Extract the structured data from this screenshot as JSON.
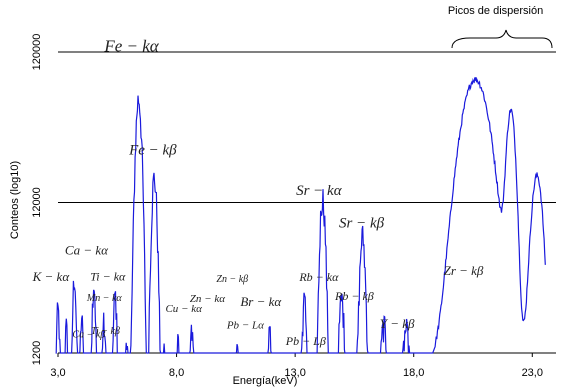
{
  "chart_data": {
    "type": "line",
    "xlabel": "Energía(keV)",
    "ylabel": "Conteos (log10)",
    "xlim": [
      3.0,
      24.0
    ],
    "ylim": [
      1200,
      200000
    ],
    "log_y": true,
    "x_ticks": [
      {
        "value": 3.0,
        "label": "3,0"
      },
      {
        "value": 8.0,
        "label": "8,0"
      },
      {
        "value": 13.0,
        "label": "13,0"
      },
      {
        "value": 18.0,
        "label": "18,0"
      },
      {
        "value": 23.0,
        "label": "23,0"
      }
    ],
    "y_ticks": [
      {
        "value": 1200,
        "label": "1200"
      },
      {
        "value": 12000,
        "label": "12000"
      },
      {
        "value": 120000,
        "label": "120000"
      }
    ],
    "reference_lines": [
      {
        "y": 12000
      },
      {
        "y": 120000
      }
    ],
    "series_color": "#1a1adc",
    "peaks": [
      {
        "x": 3.0,
        "h": 1900,
        "w": 0.06
      },
      {
        "x": 3.35,
        "h": 1300,
        "w": 0.05
      },
      {
        "x": 3.69,
        "h": 3300,
        "w": 0.06
      },
      {
        "x": 4.0,
        "h": 1400,
        "w": 0.05
      },
      {
        "x": 4.51,
        "h": 2900,
        "w": 0.06
      },
      {
        "x": 4.93,
        "h": 1300,
        "w": 0.06
      },
      {
        "x": 5.41,
        "h": 2400,
        "w": 0.06
      },
      {
        "x": 5.9,
        "h": 700,
        "w": 0.06
      },
      {
        "x": 6.4,
        "h": 58000,
        "w": 0.11
      },
      {
        "x": 7.06,
        "h": 17000,
        "w": 0.1
      },
      {
        "x": 7.48,
        "h": 700,
        "w": 0.06
      },
      {
        "x": 8.05,
        "h": 700,
        "w": 0.06
      },
      {
        "x": 8.64,
        "h": 1000,
        "w": 0.07
      },
      {
        "x": 9.57,
        "h": 400,
        "w": 0.06
      },
      {
        "x": 10.55,
        "h": 800,
        "w": 0.07
      },
      {
        "x": 11.92,
        "h": 1100,
        "w": 0.08
      },
      {
        "x": 12.61,
        "h": 400,
        "w": 0.07
      },
      {
        "x": 13.39,
        "h": 2200,
        "w": 0.08
      },
      {
        "x": 14.16,
        "h": 12500,
        "w": 0.1
      },
      {
        "x": 14.96,
        "h": 2200,
        "w": 0.09
      },
      {
        "x": 15.84,
        "h": 6500,
        "w": 0.1
      },
      {
        "x": 16.74,
        "h": 1300,
        "w": 0.1
      },
      {
        "x": 17.67,
        "h": 1100,
        "w": 0.1
      },
      {
        "x": 20.6,
        "h": 76000,
        "w": 0.5
      },
      {
        "x": 22.1,
        "h": 47000,
        "w": 0.16
      },
      {
        "x": 23.2,
        "h": 17000,
        "w": 0.2
      }
    ],
    "annotations": [
      {
        "text": "Fe − kα",
        "x": 6.1,
        "y": 121000,
        "size": 17,
        "style": "italic"
      },
      {
        "text": "Fe − kβ",
        "x": 7.0,
        "y": 25000,
        "size": 15,
        "style": "italic"
      },
      {
        "text": "Sr − kα",
        "x": 14.0,
        "y": 13500,
        "size": 15,
        "style": "italic"
      },
      {
        "text": "Sr − kβ",
        "x": 15.8,
        "y": 8200,
        "size": 15,
        "style": "italic"
      },
      {
        "text": "Ca − kα",
        "x": 4.2,
        "y": 5400,
        "size": 13,
        "style": "italic"
      },
      {
        "text": "K − kα",
        "x": 2.7,
        "y": 3600,
        "size": 13,
        "style": "italic"
      },
      {
        "text": "Ti − kα",
        "x": 5.1,
        "y": 3650,
        "size": 12,
        "style": "italic"
      },
      {
        "text": "Mn − kα",
        "x": 4.95,
        "y": 2650,
        "size": 10,
        "style": "italic"
      },
      {
        "text": "Ti − kβ",
        "x": 5.0,
        "y": 1600,
        "size": 10,
        "style": "italic"
      },
      {
        "text": "Ca − kβ",
        "x": 4.3,
        "y": 1520,
        "size": 10,
        "style": "italic"
      },
      {
        "text": "Cu − kα",
        "x": 8.3,
        "y": 2250,
        "size": 11,
        "style": "italic"
      },
      {
        "text": "Zn − kβ",
        "x": 10.35,
        "y": 3550,
        "size": 10,
        "style": "italic"
      },
      {
        "text": "Zn − kα",
        "x": 9.3,
        "y": 2620,
        "size": 11,
        "style": "italic"
      },
      {
        "text": "Br − kα",
        "x": 11.55,
        "y": 2470,
        "size": 13,
        "style": "italic"
      },
      {
        "text": "Rb − kα",
        "x": 14.0,
        "y": 3600,
        "size": 12,
        "style": "italic"
      },
      {
        "text": "Rb − kβ",
        "x": 15.5,
        "y": 2700,
        "size": 12,
        "style": "italic"
      },
      {
        "text": "Pb − Lα",
        "x": 10.9,
        "y": 1740,
        "size": 11,
        "style": "italic"
      },
      {
        "text": "Pb − Lβ",
        "x": 13.45,
        "y": 1360,
        "size": 12,
        "style": "italic"
      },
      {
        "text": "Y − kβ",
        "x": 17.3,
        "y": 1760,
        "size": 13,
        "style": "italic"
      },
      {
        "text": "Zr − kβ",
        "x": 20.1,
        "y": 3950,
        "size": 13,
        "style": "italic"
      },
      {
        "text": "Picos de dispersión",
        "x": 21.45,
        "y": 215000,
        "size": 11,
        "style": "normal"
      }
    ]
  }
}
